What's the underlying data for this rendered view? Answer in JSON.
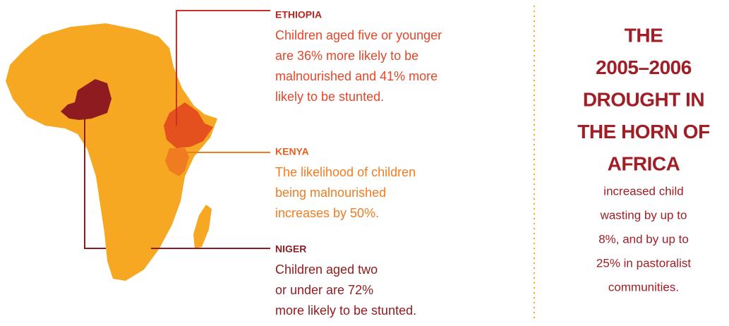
{
  "callouts": [
    {
      "name": "ETHIOPIA",
      "lines": [
        "Children aged five or younger",
        "are 36% more likely to be",
        "malnourished and 41% more",
        "likely to be stunted."
      ]
    },
    {
      "name": "KENYA",
      "lines": [
        "The likelihood of children",
        "being malnourished",
        "increases by 50%."
      ]
    },
    {
      "name": "NIGER",
      "lines": [
        "Children aged two",
        "or under are 72%",
        "more likely to be stunted."
      ]
    }
  ],
  "panel": {
    "headline": [
      "THE",
      "2005–2006",
      "DROUGHT IN",
      "THE HORN OF",
      "AFRICA"
    ],
    "body": [
      "increased child",
      "wasting by up to",
      "8%, and by up to",
      "25% in pastoralist",
      "communities."
    ]
  }
}
